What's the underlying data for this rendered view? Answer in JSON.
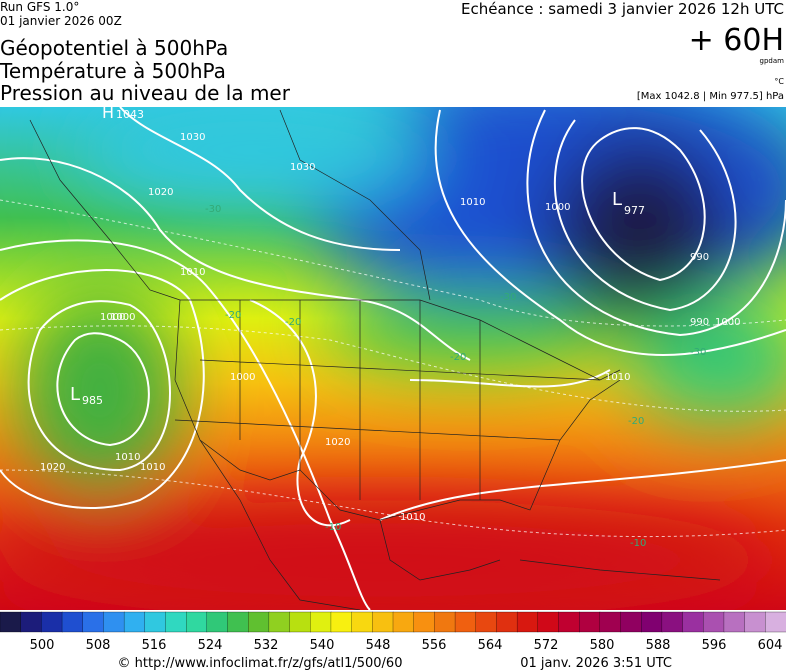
{
  "header": {
    "run": "Run GFS 1.0°",
    "run_date": "01 janvier 2026 00Z",
    "titles": [
      "Géopotentiel à 500hPa",
      "Température à 500hPa",
      "Pression au niveau de la mer"
    ],
    "valid": "Echéance : samedi 3 janvier 2026 12h UTC",
    "lead": "+ 60H",
    "unit_geo": "gpdam",
    "unit_temp": "°C",
    "extremes": "[Max 1042.8 | Min 977.5] hPa"
  },
  "map": {
    "labels": {
      "low1": "L",
      "low1_value": "977",
      "low2": "L",
      "low2_value": "985",
      "high1": "H",
      "high1_value": "1043",
      "isobars": [
        "990",
        "1000",
        "1010",
        "990",
        "1000",
        "1010",
        "1000",
        "1010",
        "1020",
        "1030",
        "1030",
        "1020",
        "1010",
        "1000",
        "1010",
        "1020",
        "1010",
        "1000"
      ],
      "isotherms": [
        "-30",
        "-30",
        "-30",
        "-20",
        "-20",
        "-20",
        "-20",
        "-10",
        "-10"
      ]
    }
  },
  "colorbar": {
    "colors": [
      "#1a1a4a",
      "#1c1c7a",
      "#1a2fa8",
      "#1f4fd0",
      "#2a70e8",
      "#2f90f0",
      "#30b0f0",
      "#30c8e0",
      "#30d8c0",
      "#30d8a0",
      "#30c878",
      "#40c050",
      "#60c030",
      "#90d020",
      "#b8e010",
      "#e0f010",
      "#f8f010",
      "#f8d810",
      "#f8c010",
      "#f8a810",
      "#f89010",
      "#f07810",
      "#f06010",
      "#e84810",
      "#e03010",
      "#d81810",
      "#d00818",
      "#c00030",
      "#b00040",
      "#a00050",
      "#900060",
      "#800070",
      "#8a1080",
      "#9a30a0",
      "#aa50b0",
      "#b870c0",
      "#c890d0",
      "#d8b0e0"
    ],
    "labels": [
      "500",
      "508",
      "516",
      "524",
      "532",
      "540",
      "548",
      "556",
      "564",
      "572",
      "580",
      "588",
      "596",
      "604"
    ]
  },
  "footer": {
    "source": "© http://www.infoclimat.fr/z/gfs/atl1/500/60",
    "generated": "01 janv. 2026  3:51 UTC"
  }
}
